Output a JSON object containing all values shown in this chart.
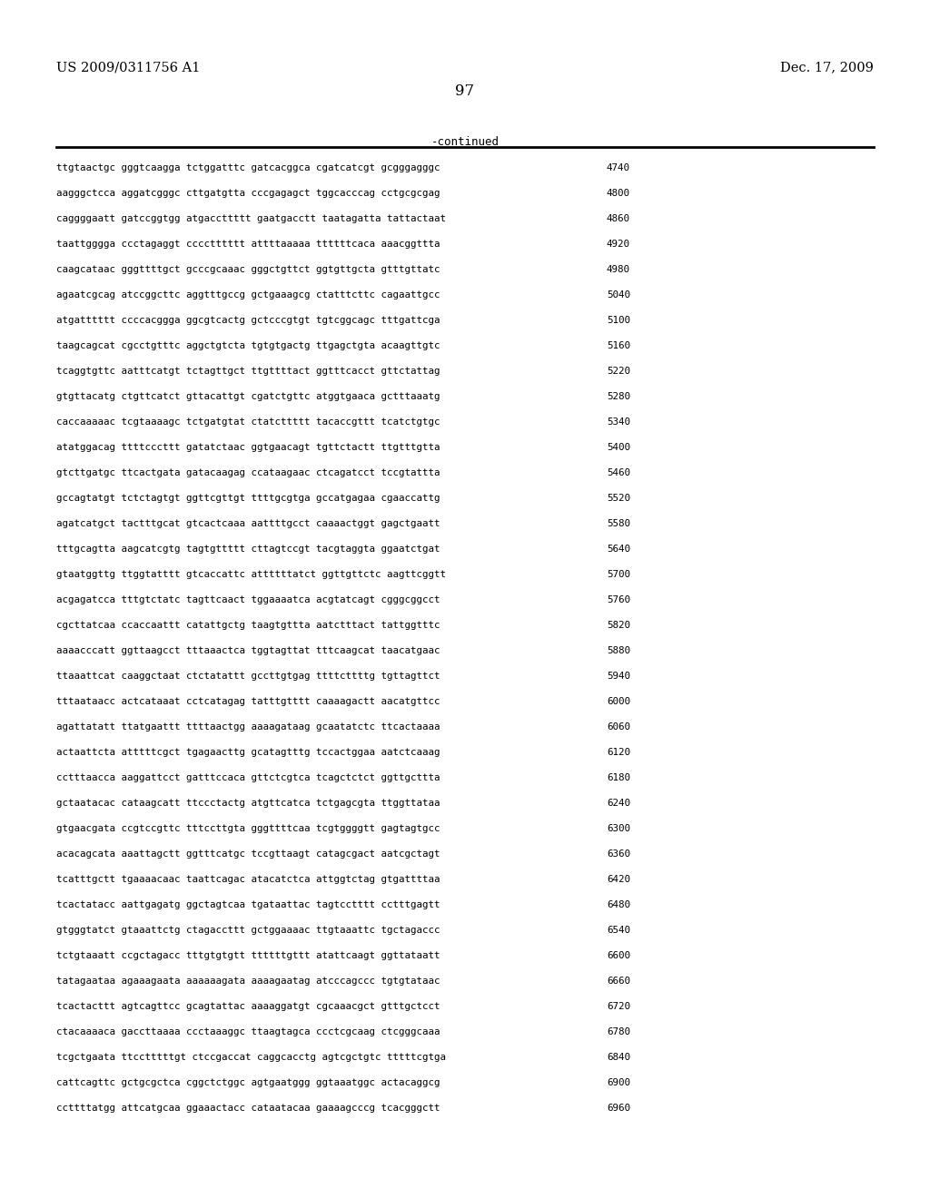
{
  "header_left": "US 2009/0311756 A1",
  "header_right": "Dec. 17, 2009",
  "page_number": "97",
  "continued_label": "-continued",
  "background_color": "#ffffff",
  "text_color": "#000000",
  "sequence_lines": [
    [
      "ttgtaactgc gggtcaagga tctggatttc gatcacggca cgatcatcgt gcgggagggc",
      "4740"
    ],
    [
      "aagggctcca aggatcgggc cttgatgtta cccgagagct tggcacccag cctgcgcgag",
      "4800"
    ],
    [
      "caggggaatt gatccggtgg atgaccttttt gaatgacctt taatagatta tattactaat",
      "4860"
    ],
    [
      "taattgggga ccctagaggt cccctttttt attttaaaaa ttttttcaca aaacggttta",
      "4920"
    ],
    [
      "caagcataac gggttttgct gcccgcaaac gggctgttct ggtgttgcta gtttgttatc",
      "4980"
    ],
    [
      "agaatcgcag atccggcttc aggtttgccg gctgaaagcg ctatttcttc cagaattgcc",
      "5040"
    ],
    [
      "atgatttttt ccccacggga ggcgtcactg gctcccgtgt tgtcggcagc tttgattcga",
      "5100"
    ],
    [
      "taagcagcat cgcctgtttc aggctgtcta tgtgtgactg ttgagctgta acaagttgtc",
      "5160"
    ],
    [
      "tcaggtgttc aatttcatgt tctagttgct ttgttttact ggtttcacct gttctattag",
      "5220"
    ],
    [
      "gtgttacatg ctgttcatct gttacattgt cgatctgttc atggtgaaca gctttaaatg",
      "5280"
    ],
    [
      "caccaaaaac tcgtaaaagc tctgatgtat ctatcttttt tacaccgttt tcatctgtgc",
      "5340"
    ],
    [
      "atatggacag ttttcccttt gatatctaac ggtgaacagt tgttctactt ttgtttgtta",
      "5400"
    ],
    [
      "gtcttgatgc ttcactgata gatacaagag ccataagaac ctcagatcct tccgtattta",
      "5460"
    ],
    [
      "gccagtatgt tctctagtgt ggttcgttgt ttttgcgtga gccatgagaa cgaaccattg",
      "5520"
    ],
    [
      "agatcatgct tactttgcat gtcactcaaa aattttgcct caaaactggt gagctgaatt",
      "5580"
    ],
    [
      "tttgcagtta aagcatcgtg tagtgttttt cttagtccgt tacgtaggta ggaatctgat",
      "5640"
    ],
    [
      "gtaatggttg ttggtatttt gtcaccattc attttttatct ggttgttctc aagttcggtt",
      "5700"
    ],
    [
      "acgagatcca tttgtctatc tagttcaact tggaaaatca acgtatcagt cgggcggcct",
      "5760"
    ],
    [
      "cgcttatcaa ccaccaattt catattgctg taagtgttta aatctttact tattggtttc",
      "5820"
    ],
    [
      "aaaacccatt ggttaagcct tttaaactca tggtagttat tttcaagcat taacatgaac",
      "5880"
    ],
    [
      "ttaaattcat caaggctaat ctctatattt gccttgtgag ttttcttttg tgttagttct",
      "5940"
    ],
    [
      "tttaataacc actcataaat cctcatagag tatttgtttt caaaagactt aacatgttcc",
      "6000"
    ],
    [
      "agattatatt ttatgaattt ttttaactgg aaaagataag gcaatatctc ttcactaaaa",
      "6060"
    ],
    [
      "actaattcta atttttcgct tgagaacttg gcatagtttg tccactggaa aatctcaaag",
      "6120"
    ],
    [
      "cctttaacca aaggattcct gatttccaca gttctcgtca tcagctctct ggttgcttta",
      "6180"
    ],
    [
      "gctaatacac cataagcatt ttccctactg atgttcatca tctgagcgta ttggttataa",
      "6240"
    ],
    [
      "gtgaacgata ccgtccgttc tttccttgta gggttttcaa tcgtggggtt gagtagtgcc",
      "6300"
    ],
    [
      "acacagcata aaattagctt ggtttcatgc tccgttaagt catagcgact aatcgctagt",
      "6360"
    ],
    [
      "tcatttgctt tgaaaacaac taattcagac atacatctca attggtctag gtgattttaa",
      "6420"
    ],
    [
      "tcactatacc aattgagatg ggctagtcaa tgataattac tagtcctttt cctttgagtt",
      "6480"
    ],
    [
      "gtgggtatct gtaaattctg ctagaccttt gctggaaaac ttgtaaattc tgctagaccc",
      "6540"
    ],
    [
      "tctgtaaatt ccgctagacc tttgtgtgtt ttttttgttt atattcaagt ggttataatt",
      "6600"
    ],
    [
      "tatagaataa agaaagaata aaaaaagata aaaagaatag atcccagccc tgtgtataac",
      "6660"
    ],
    [
      "tcactacttt agtcagttcc gcagtattac aaaaggatgt cgcaaacgct gtttgctcct",
      "6720"
    ],
    [
      "ctacaaaaca gaccttaaaa ccctaaaggc ttaagtagca ccctcgcaag ctcgggcaaa",
      "6780"
    ],
    [
      "tcgctgaata ttcctttttgt ctccgaccat caggcacctg agtcgctgtc tttttcgtga",
      "6840"
    ],
    [
      "cattcagttc gctgcgctca cggctctggc agtgaatggg ggtaaatggc actacaggcg",
      "6900"
    ],
    [
      "ccttttatgg attcatgcaa ggaaactacc cataatacaa gaaaagcccg tcacgggctt",
      "6960"
    ]
  ]
}
